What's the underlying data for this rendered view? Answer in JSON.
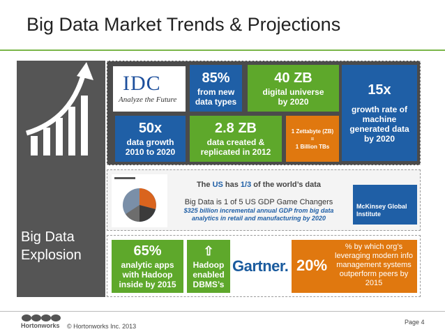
{
  "header": {
    "title": "Big Data Market Trends & Projections"
  },
  "side": {
    "caption": "Big Data Explosion"
  },
  "panel1": {
    "logo": "IDC",
    "tagline": "Analyze the Future",
    "stats": [
      {
        "value": "85%",
        "text": "from new data types"
      },
      {
        "value": "40 ZB",
        "text": "digital universe by 2020"
      },
      {
        "value": "15x",
        "text": "growth rate of machine generated data by 2020"
      },
      {
        "value": "50x",
        "text": "data growth 2010 to 2020"
      },
      {
        "value": "2.8 ZB",
        "text": "data created & replicated in 2012"
      }
    ],
    "zettabyte": [
      "1 Zettabyte (ZB)",
      "=",
      "1 Billion TBs"
    ]
  },
  "panel2": {
    "headline": [
      "The ",
      "US",
      " has ",
      "1/3",
      " of the world’s data"
    ],
    "statement": "Big Data is 1 of 5 US GDP Game Changers",
    "note": "$325 billion incremental annual GDP from big data analytics in retail and manufacturing by 2020",
    "source": "McKinsey Global Institute"
  },
  "panel3": {
    "source": "Gartner.",
    "stats": [
      {
        "value": "65%",
        "text": "analytic apps with Hadoop inside by 2015"
      },
      {
        "icon": "⇧",
        "text": "Hadoop enabled DBMS’s"
      },
      {
        "value": "20%",
        "text": "% by which org’s leveraging modern info management systems outperform peers by 2015"
      }
    ]
  },
  "footer": {
    "logo": "Hortonworks",
    "copyright": "© Hortonworks Inc. 2013",
    "page": "Page 4"
  }
}
